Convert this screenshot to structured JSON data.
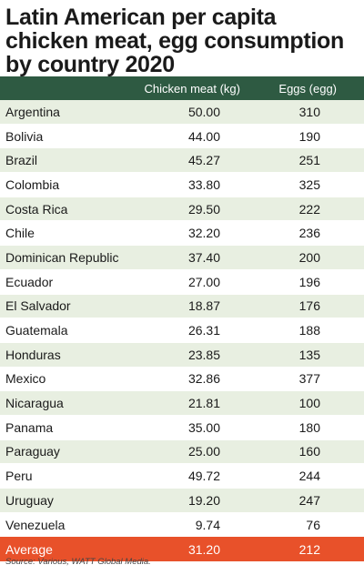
{
  "title": "Latin American per capita chicken meat, egg consumption by country 2020",
  "chart_data": {
    "type": "table",
    "title": "Latin American per capita chicken meat, egg consumption by country 2020",
    "columns": [
      "",
      "Chicken meat (kg)",
      "Eggs (egg)"
    ],
    "rows": [
      {
        "country": "Argentina",
        "chicken": "50.00",
        "eggs": "310"
      },
      {
        "country": "Bolivia",
        "chicken": "44.00",
        "eggs": "190"
      },
      {
        "country": "Brazil",
        "chicken": "45.27",
        "eggs": "251"
      },
      {
        "country": "Colombia",
        "chicken": "33.80",
        "eggs": "325"
      },
      {
        "country": "Costa Rica",
        "chicken": "29.50",
        "eggs": "222"
      },
      {
        "country": "Chile",
        "chicken": "32.20",
        "eggs": "236"
      },
      {
        "country": "Dominican Republic",
        "chicken": "37.40",
        "eggs": "200"
      },
      {
        "country": "Ecuador",
        "chicken": "27.00",
        "eggs": "196"
      },
      {
        "country": "El Salvador",
        "chicken": "18.87",
        "eggs": "176"
      },
      {
        "country": "Guatemala",
        "chicken": "26.31",
        "eggs": "188"
      },
      {
        "country": "Honduras",
        "chicken": "23.85",
        "eggs": "135"
      },
      {
        "country": "Mexico",
        "chicken": "32.86",
        "eggs": "377"
      },
      {
        "country": "Nicaragua",
        "chicken": "21.81",
        "eggs": "100"
      },
      {
        "country": "Panama",
        "chicken": "35.00",
        "eggs": "180"
      },
      {
        "country": "Paraguay",
        "chicken": "25.00",
        "eggs": "160"
      },
      {
        "country": "Peru",
        "chicken": "49.72",
        "eggs": "244"
      },
      {
        "country": "Uruguay",
        "chicken": "19.20",
        "eggs": "247"
      },
      {
        "country": "Venezuela",
        "chicken": "9.74",
        "eggs": "76"
      }
    ],
    "average": {
      "label": "Average",
      "chicken": "31.20",
      "eggs": "212"
    }
  },
  "source": "Source: Various, WATT Global Media.",
  "colors": {
    "header_bg": "#2e5a42",
    "stripe_bg": "#e8efe1",
    "average_bg": "#e8512a"
  }
}
